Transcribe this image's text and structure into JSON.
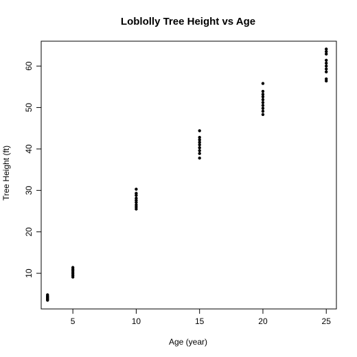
{
  "chart_data": {
    "type": "scatter",
    "title": "Loblolly Tree Height vs Age",
    "xlabel": "Age (year)",
    "ylabel": "Tree Height (ft)",
    "xlim": [
      2.5,
      25.8
    ],
    "ylim": [
      1.4,
      66.0
    ],
    "x_ticks": [
      5,
      10,
      15,
      20,
      25
    ],
    "y_ticks": [
      10,
      20,
      30,
      40,
      50,
      60
    ],
    "grid": false,
    "legend": "none",
    "point_color": "#000000",
    "points": [
      {
        "x": 3,
        "y": 3.5
      },
      {
        "x": 3,
        "y": 3.7
      },
      {
        "x": 3,
        "y": 3.9
      },
      {
        "x": 3,
        "y": 4.1
      },
      {
        "x": 3,
        "y": 4.3
      },
      {
        "x": 3,
        "y": 4.5
      },
      {
        "x": 3,
        "y": 4.8
      },
      {
        "x": 5,
        "y": 9.1
      },
      {
        "x": 5,
        "y": 9.5
      },
      {
        "x": 5,
        "y": 9.9
      },
      {
        "x": 5,
        "y": 10.3
      },
      {
        "x": 5,
        "y": 10.7
      },
      {
        "x": 5,
        "y": 11.0
      },
      {
        "x": 5,
        "y": 11.4
      },
      {
        "x": 10,
        "y": 25.5
      },
      {
        "x": 10,
        "y": 26.0
      },
      {
        "x": 10,
        "y": 26.5
      },
      {
        "x": 10,
        "y": 27.1
      },
      {
        "x": 10,
        "y": 27.6
      },
      {
        "x": 10,
        "y": 28.1
      },
      {
        "x": 10,
        "y": 28.8
      },
      {
        "x": 10,
        "y": 29.3
      },
      {
        "x": 10,
        "y": 30.3
      },
      {
        "x": 15,
        "y": 37.8
      },
      {
        "x": 15,
        "y": 38.9
      },
      {
        "x": 15,
        "y": 39.6
      },
      {
        "x": 15,
        "y": 40.3
      },
      {
        "x": 15,
        "y": 41.0
      },
      {
        "x": 15,
        "y": 41.6
      },
      {
        "x": 15,
        "y": 42.2
      },
      {
        "x": 15,
        "y": 42.8
      },
      {
        "x": 15,
        "y": 44.4
      },
      {
        "x": 20,
        "y": 48.3
      },
      {
        "x": 20,
        "y": 49.1
      },
      {
        "x": 20,
        "y": 49.8
      },
      {
        "x": 20,
        "y": 50.5
      },
      {
        "x": 20,
        "y": 51.2
      },
      {
        "x": 20,
        "y": 51.9
      },
      {
        "x": 20,
        "y": 52.6
      },
      {
        "x": 20,
        "y": 53.2
      },
      {
        "x": 20,
        "y": 53.9
      },
      {
        "x": 20,
        "y": 55.8
      },
      {
        "x": 25,
        "y": 56.4
      },
      {
        "x": 25,
        "y": 56.9
      },
      {
        "x": 25,
        "y": 58.6
      },
      {
        "x": 25,
        "y": 59.3
      },
      {
        "x": 25,
        "y": 60.0
      },
      {
        "x": 25,
        "y": 60.7
      },
      {
        "x": 25,
        "y": 61.4
      },
      {
        "x": 25,
        "y": 62.9
      },
      {
        "x": 25,
        "y": 63.5
      },
      {
        "x": 25,
        "y": 64.1
      }
    ]
  }
}
